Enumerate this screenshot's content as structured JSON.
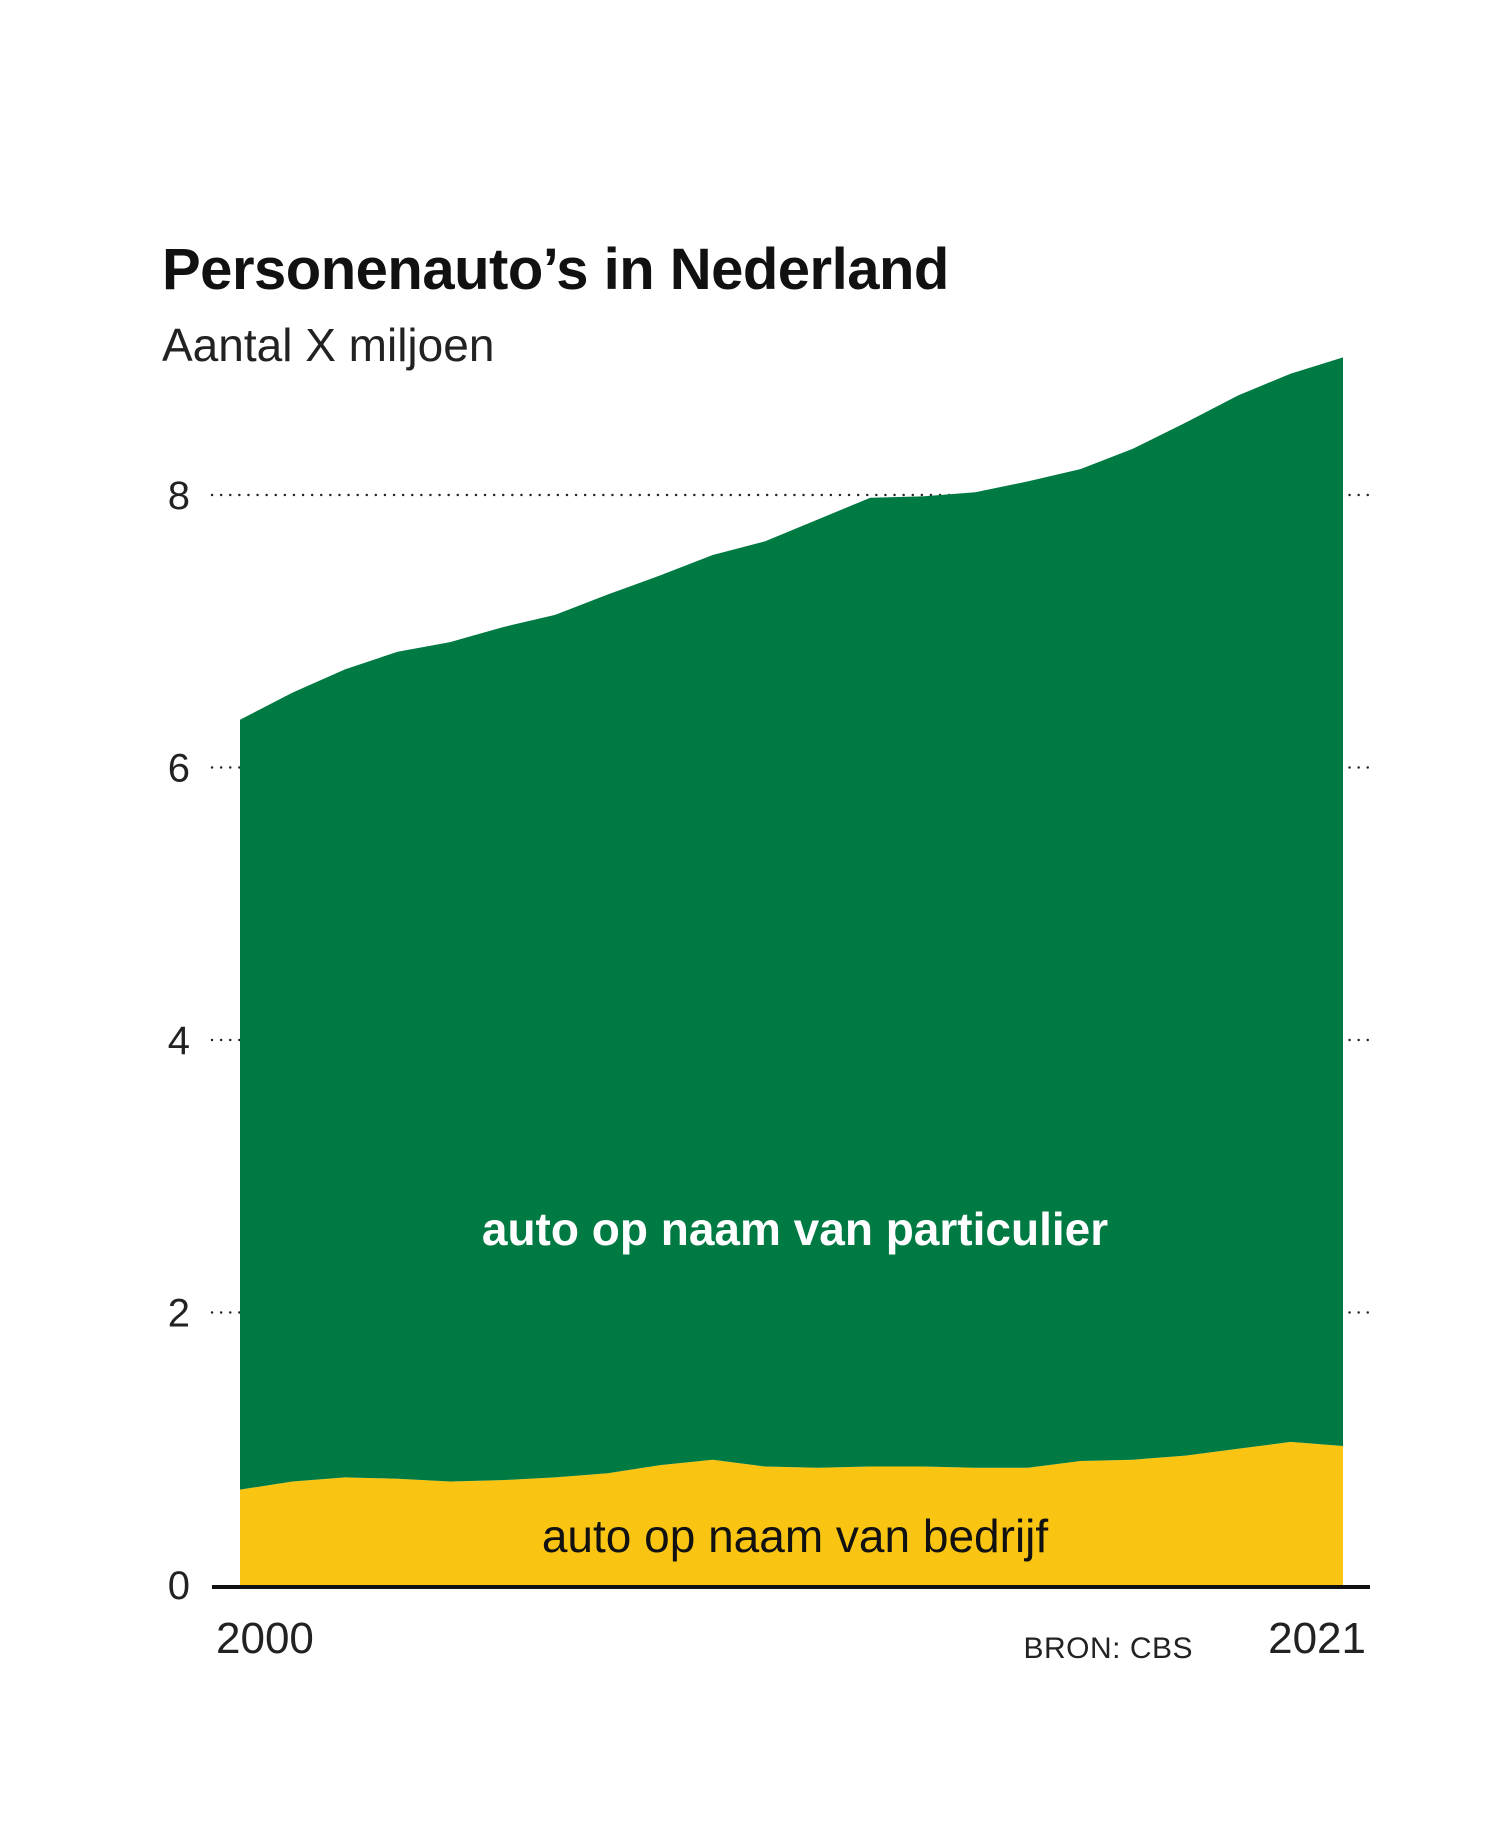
{
  "chart_data": {
    "type": "area",
    "stacked": true,
    "title": "Personenauto’s in Nederland",
    "subtitle": "Aantal X miljoen",
    "x": [
      2000,
      2001,
      2002,
      2003,
      2004,
      2005,
      2006,
      2007,
      2008,
      2009,
      2010,
      2011,
      2012,
      2013,
      2014,
      2015,
      2016,
      2017,
      2018,
      2019,
      2020,
      2021
    ],
    "x_tick_labels": [
      "2000",
      "2021"
    ],
    "y_ticks": [
      "0",
      "2",
      "4",
      "6",
      "8"
    ],
    "ylim": [
      0,
      9
    ],
    "grid": "dotted horizontal",
    "series": [
      {
        "name": "auto op naam van bedrijf",
        "color": "#f9c512",
        "values": [
          0.7,
          0.76,
          0.79,
          0.78,
          0.76,
          0.77,
          0.79,
          0.82,
          0.88,
          0.92,
          0.87,
          0.86,
          0.87,
          0.87,
          0.86,
          0.86,
          0.91,
          0.92,
          0.95,
          1.0,
          1.05,
          1.02
        ]
      },
      {
        "name": "auto op naam van particulier",
        "color": "#007a43",
        "values": [
          5.65,
          5.79,
          5.93,
          6.07,
          6.16,
          6.26,
          6.33,
          6.45,
          6.53,
          6.64,
          6.79,
          6.96,
          7.11,
          7.12,
          7.16,
          7.24,
          7.28,
          7.42,
          7.58,
          7.73,
          7.84,
          7.99
        ]
      }
    ],
    "annotations": [
      "auto op naam van particulier",
      "auto op naam van bedrijf"
    ],
    "source": "BRON: CBS"
  }
}
